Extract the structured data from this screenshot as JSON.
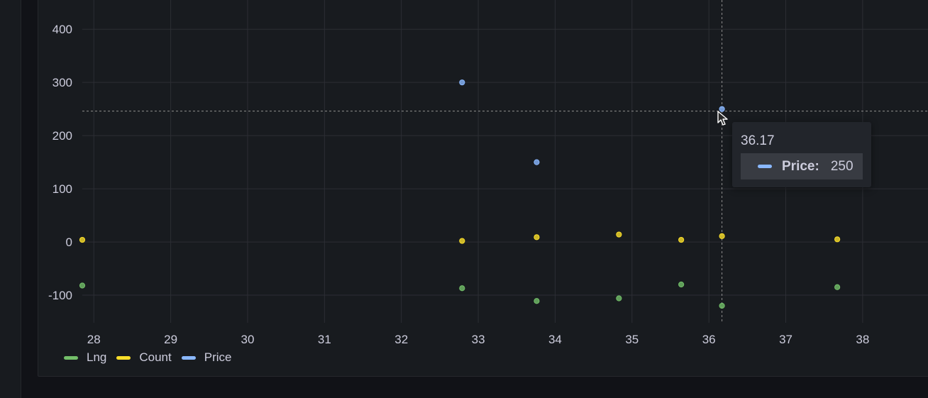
{
  "chart_data": {
    "type": "scatter",
    "xlim": [
      27.85,
      38.85
    ],
    "ylim": [
      -152,
      455
    ],
    "x_ticks": [
      28,
      29,
      30,
      31,
      32,
      33,
      34,
      35,
      36,
      37,
      38
    ],
    "y_ticks": [
      400,
      300,
      200,
      100,
      0,
      -100
    ],
    "grid": true,
    "legend_position": "bottom-left",
    "series": [
      {
        "name": "Lng",
        "color": "#73bf69",
        "points": [
          [
            27.85,
            -82
          ],
          [
            32.79,
            -87
          ],
          [
            33.76,
            -111
          ],
          [
            34.83,
            -106
          ],
          [
            35.64,
            -80
          ],
          [
            36.17,
            -120
          ],
          [
            37.67,
            -85
          ]
        ]
      },
      {
        "name": "Count",
        "color": "#fade2a",
        "points": [
          [
            27.85,
            4
          ],
          [
            32.79,
            2
          ],
          [
            33.76,
            9
          ],
          [
            34.83,
            14
          ],
          [
            35.64,
            4
          ],
          [
            36.17,
            11
          ],
          [
            37.67,
            5
          ]
        ]
      },
      {
        "name": "Price",
        "color": "#8ab8ff",
        "points": [
          [
            32.79,
            300
          ],
          [
            33.76,
            150
          ],
          [
            36.17,
            250
          ]
        ]
      }
    ],
    "crosshair": {
      "x": 36.17,
      "y": 246
    },
    "tooltip": {
      "title": "36.17",
      "series": "Price",
      "label": "Price:",
      "value": "250"
    }
  }
}
